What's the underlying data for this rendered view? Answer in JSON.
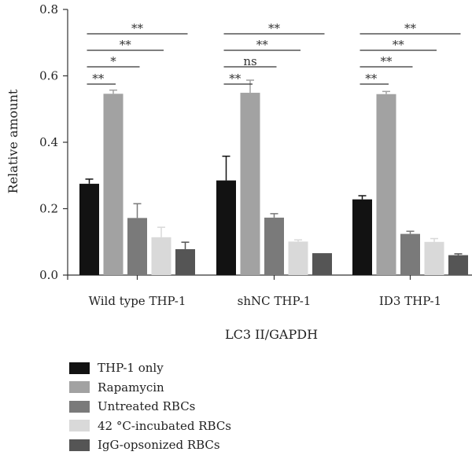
{
  "chart_data": {
    "type": "bar",
    "title": "",
    "xlabel": "LC3 II/GAPDH",
    "ylabel": "Relative amount",
    "ylim": [
      0,
      0.8
    ],
    "yticks": [
      "0.0",
      "0.2",
      "0.4",
      "0.6",
      "0.8"
    ],
    "categories": [
      "Wild type THP-1",
      "shNC THP-1",
      "ID3 THP-1"
    ],
    "series": [
      {
        "name": "THP-1 only",
        "color": "#121212",
        "values": [
          0.275,
          0.285,
          0.228
        ],
        "errors": [
          0.014,
          0.073,
          0.011
        ]
      },
      {
        "name": "Rapamycin",
        "color": "#a2a2a2",
        "values": [
          0.546,
          0.549,
          0.545
        ],
        "errors": [
          0.011,
          0.038,
          0.008
        ]
      },
      {
        "name": "Untreated RBCs",
        "color": "#7a7a7a",
        "values": [
          0.172,
          0.173,
          0.124
        ],
        "errors": [
          0.043,
          0.012,
          0.008
        ]
      },
      {
        "name": "42 °C-incubated RBCs",
        "color": "#d9d9d9",
        "values": [
          0.114,
          0.101,
          0.1
        ],
        "errors": [
          0.03,
          0.005,
          0.01
        ]
      },
      {
        "name": "IgG-opsonized RBCs",
        "color": "#555555",
        "values": [
          0.078,
          0.066,
          0.06
        ],
        "errors": [
          0.021,
          0.0,
          0.004
        ]
      }
    ],
    "significance": [
      [
        {
          "to_series": 1,
          "label": "**"
        },
        {
          "to_series": 2,
          "label": "*"
        },
        {
          "to_series": 3,
          "label": "**"
        },
        {
          "to_series": 4,
          "label": "**"
        }
      ],
      [
        {
          "to_series": 1,
          "label": "**"
        },
        {
          "to_series": 2,
          "label": "ns"
        },
        {
          "to_series": 3,
          "label": "**"
        },
        {
          "to_series": 4,
          "label": "**"
        }
      ],
      [
        {
          "to_series": 1,
          "label": "**"
        },
        {
          "to_series": 2,
          "label": "**"
        },
        {
          "to_series": 3,
          "label": "**"
        },
        {
          "to_series": 4,
          "label": "**"
        }
      ]
    ],
    "legend_position": "bottom-left"
  }
}
